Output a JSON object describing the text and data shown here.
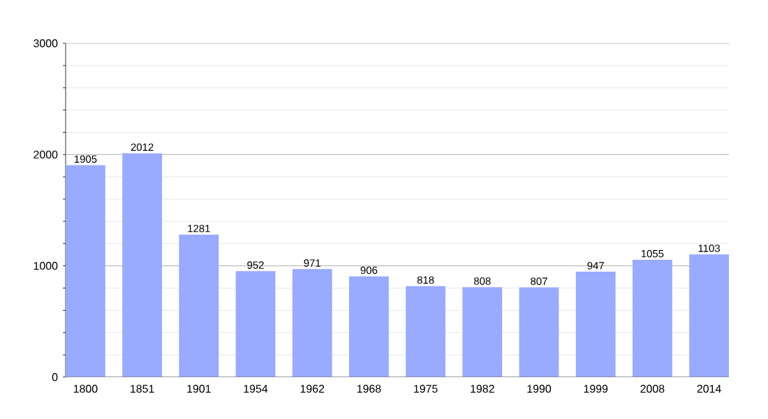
{
  "chart_data": {
    "type": "bar",
    "categories": [
      "1800",
      "1851",
      "1901",
      "1954",
      "1962",
      "1968",
      "1975",
      "1982",
      "1990",
      "1999",
      "2008",
      "2014"
    ],
    "values": [
      1905,
      2012,
      1281,
      952,
      971,
      906,
      818,
      808,
      807,
      947,
      1055,
      1103
    ],
    "color": "#99aaff",
    "ylim": [
      0,
      3000
    ],
    "yticks": [
      0,
      {
        "value": 200,
        "label": null
      },
      {
        "value": 400,
        "label": null
      },
      {
        "value": 600,
        "label": null
      },
      {
        "value": 800,
        "label": null
      },
      1000,
      {
        "value": 1200,
        "label": null
      },
      {
        "value": 1400,
        "label": null
      },
      {
        "value": 1600,
        "label": null
      },
      {
        "value": 1800,
        "label": null
      },
      2000,
      {
        "value": 2200,
        "label": null
      },
      {
        "value": 2400,
        "label": null
      },
      {
        "value": 2600,
        "label": null
      },
      {
        "value": 2800,
        "label": null
      },
      3000
    ],
    "grid": "y",
    "data_labels": true
  }
}
